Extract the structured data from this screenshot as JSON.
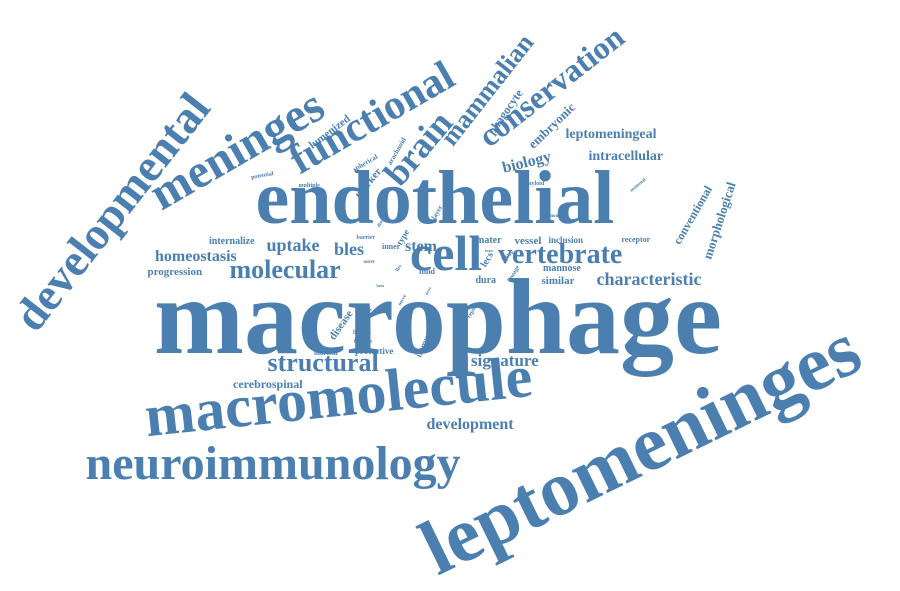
{
  "cloud": {
    "color": "#4a7fb0",
    "words": [
      {
        "id": "w-macrophage",
        "text": "macrophage"
      },
      {
        "id": "w-leptomeninges",
        "text": "leptomeninges"
      },
      {
        "id": "w-endothelial",
        "text": "endothelial"
      },
      {
        "id": "w-macromolecule",
        "text": "macromolecule"
      },
      {
        "id": "w-neuroimmunology",
        "text": "neuroimmunology"
      },
      {
        "id": "w-developmental",
        "text": "developmental"
      },
      {
        "id": "w-meninges",
        "text": "meninges"
      },
      {
        "id": "w-functional",
        "text": "functional"
      },
      {
        "id": "w-conservation",
        "text": "conservation"
      },
      {
        "id": "w-mammalian",
        "text": "mammalian"
      },
      {
        "id": "w-brain",
        "text": "brain"
      },
      {
        "id": "w-cell",
        "text": "cell"
      },
      {
        "id": "w-molecular",
        "text": "molecular"
      },
      {
        "id": "w-vertebrate",
        "text": "vertebrate"
      },
      {
        "id": "w-structural",
        "text": "structural"
      },
      {
        "id": "w-characteristic",
        "text": "characteristic"
      },
      {
        "id": "w-development",
        "text": "development"
      },
      {
        "id": "w-signature",
        "text": "signature"
      },
      {
        "id": "w-homeostasis",
        "text": "homeostasis"
      },
      {
        "id": "w-uptake",
        "text": "uptake"
      },
      {
        "id": "w-bles",
        "text": "bles"
      },
      {
        "id": "w-stem",
        "text": "stem"
      },
      {
        "id": "w-leptomeningeal",
        "text": "leptomeningeal"
      },
      {
        "id": "w-intracellular",
        "text": "intracellular"
      },
      {
        "id": "w-biology",
        "text": "biology"
      },
      {
        "id": "w-embryonic",
        "text": "embryonic"
      },
      {
        "id": "w-phagocyte",
        "text": "phagocyte"
      },
      {
        "id": "w-cerebrospinal",
        "text": "cerebrospinal"
      },
      {
        "id": "w-progression",
        "text": "progression"
      },
      {
        "id": "w-internalize",
        "text": "internalize"
      },
      {
        "id": "w-similar",
        "text": "similar"
      },
      {
        "id": "w-mannose",
        "text": "mannose"
      },
      {
        "id": "w-inclusion",
        "text": "inclusion"
      },
      {
        "id": "w-receptor",
        "text": "receptor"
      },
      {
        "id": "w-mater",
        "text": "mater"
      },
      {
        "id": "w-vessel",
        "text": "vessel"
      },
      {
        "id": "w-dura",
        "text": "dura"
      },
      {
        "id": "w-lecs",
        "text": "lecs"
      },
      {
        "id": "w-conventional",
        "text": "conventional"
      },
      {
        "id": "w-morphological",
        "text": "morphological"
      },
      {
        "id": "w-lumenized",
        "text": "lumenized"
      },
      {
        "id": "w-marker",
        "text": "marker"
      },
      {
        "id": "w-disease",
        "text": "disease"
      },
      {
        "id": "w-protective",
        "text": "protective"
      },
      {
        "id": "w-mortem",
        "text": "mortem"
      },
      {
        "id": "w-human",
        "text": "human"
      },
      {
        "id": "w-feature",
        "text": "feature"
      },
      {
        "id": "w-immune",
        "text": "immune"
      },
      {
        "id": "w-spherical",
        "text": "spherical"
      },
      {
        "id": "w-arachnoid",
        "text": "arachnoid"
      },
      {
        "id": "w-type",
        "text": "type"
      },
      {
        "id": "w-potential",
        "text": "potential"
      },
      {
        "id": "w-amyloid",
        "text": "amyloid"
      },
      {
        "id": "w-mammal",
        "text": "mammal"
      },
      {
        "id": "w-mouse",
        "text": "mouse"
      },
      {
        "id": "w-layer",
        "text": "layer"
      },
      {
        "id": "w-distinct",
        "text": "distinct"
      },
      {
        "id": "w-multiple",
        "text": "multiple"
      },
      {
        "id": "w-barrier",
        "text": "barrier"
      },
      {
        "id": "w-inner",
        "text": "inner"
      },
      {
        "id": "w-fluid",
        "text": "fluid"
      },
      {
        "id": "w-share",
        "text": "share"
      },
      {
        "id": "w-lineage",
        "text": "lineage"
      },
      {
        "id": "w-express",
        "text": "express"
      },
      {
        "id": "w-report",
        "text": "report"
      },
      {
        "id": "w-outer",
        "text": "outer"
      },
      {
        "id": "w-toxic",
        "text": "toxic"
      },
      {
        "id": "w-lles",
        "text": "lles"
      },
      {
        "id": "w-bem",
        "text": "bem"
      },
      {
        "id": "w-nerve",
        "text": "nerve"
      },
      {
        "id": "w-drive",
        "text": "drive"
      }
    ]
  }
}
